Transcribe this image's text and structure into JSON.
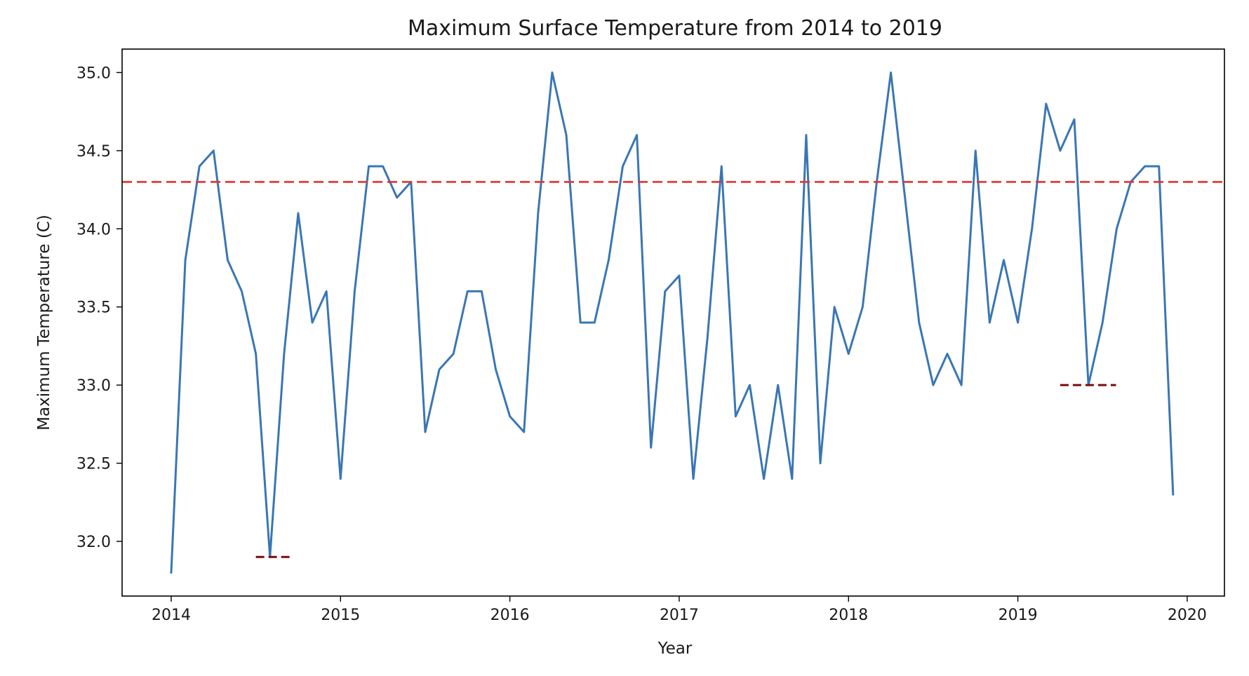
{
  "chart_data": {
    "type": "line",
    "title": "Maximum Surface Temperature from 2014 to 2019",
    "xlabel": "Year",
    "ylabel": "Maximum Temperature (C)",
    "xlim": [
      2013.71,
      2020.22
    ],
    "ylim": [
      31.65,
      35.15
    ],
    "x_ticks": [
      2014,
      2015,
      2016,
      2017,
      2018,
      2019,
      2020
    ],
    "x_tick_labels": [
      "2014",
      "2015",
      "2016",
      "2017",
      "2018",
      "2019",
      "2020"
    ],
    "y_ticks": [
      32.0,
      32.5,
      33.0,
      33.5,
      34.0,
      34.5,
      35.0
    ],
    "y_tick_labels": [
      "32.0",
      "32.5",
      "33.0",
      "33.5",
      "34.0",
      "34.5",
      "35.0"
    ],
    "grid": false,
    "series": [
      {
        "color": "#3a76b4",
        "x_start": 2014.0,
        "x_step_months": 1,
        "values": [
          31.8,
          33.8,
          34.4,
          34.5,
          33.8,
          33.6,
          33.2,
          31.9,
          33.2,
          34.1,
          33.4,
          33.6,
          32.4,
          33.6,
          34.4,
          34.4,
          34.2,
          34.3,
          32.7,
          33.1,
          33.2,
          33.6,
          33.6,
          33.1,
          32.8,
          32.7,
          34.1,
          35.0,
          34.6,
          33.4,
          33.4,
          33.8,
          34.4,
          34.6,
          32.6,
          33.6,
          33.7,
          32.4,
          33.3,
          34.4,
          32.8,
          33.0,
          32.4,
          33.0,
          32.4,
          34.6,
          32.5,
          33.5,
          33.2,
          33.5,
          34.3,
          35.0,
          34.2,
          33.4,
          33.0,
          33.2,
          33.0,
          34.5,
          33.4,
          33.8,
          33.4,
          34.0,
          34.8,
          34.5,
          34.7,
          33.0,
          33.4,
          34.0,
          34.3,
          34.4,
          34.4,
          32.3
        ]
      }
    ],
    "reference_lines": [
      {
        "type": "horizontal",
        "y": 34.3,
        "color": "#e8322a",
        "style": "dashed"
      }
    ],
    "annotations": [
      {
        "type": "segment",
        "y": 31.9,
        "x_from": 2014.5,
        "x_to": 2014.7,
        "color": "#7a0b0b",
        "style": "dashed"
      },
      {
        "type": "segment",
        "y": 33.0,
        "x_from": 2019.25,
        "x_to": 2019.58,
        "color": "#7a0b0b",
        "style": "dashed"
      }
    ]
  }
}
